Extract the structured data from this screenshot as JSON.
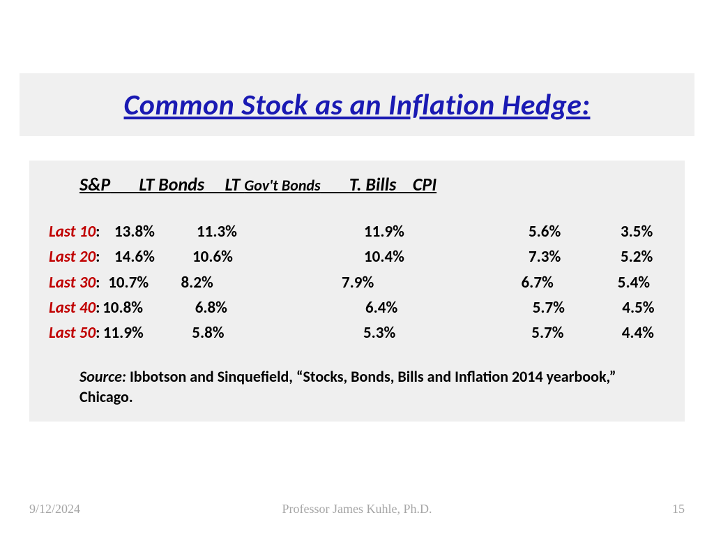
{
  "title": "Common Stock as an Inflation Hedge:",
  "colors": {
    "title_color": "#1a1ab3",
    "title_bg": "#f0f0f0",
    "content_bg": "#efefef",
    "label_color": "#c00000",
    "text_color": "#000000",
    "footer_color": "#a6a6a6",
    "page_bg": "#ffffff"
  },
  "typography": {
    "title_fontsize": 42,
    "header_fontsize": 26,
    "header_small_fontsize": 22,
    "row_fontsize": 23,
    "source_fontsize": 22,
    "footer_fontsize": 18
  },
  "headers": {
    "h1": "S&P",
    "h2": "LT Bonds",
    "h3a": "LT ",
    "h3b": "Gov't Bonds",
    "h4": "T. Bills",
    "h5": "CPI"
  },
  "rows": [
    {
      "label": "Last 10",
      "sp": "13.8%",
      "ltb": "11.3%",
      "ltg": "11.9%",
      "tb": "5.6%",
      "cpi": "3.5%",
      "off1": "14px",
      "off2": "22px",
      "off3": "80px",
      "off4": "60px",
      "off5": "36px"
    },
    {
      "label": "Last 20",
      "sp": "14.6%",
      "ltb": "10.6%",
      "ltg": "10.4%",
      "tb": "7.3%",
      "cpi": "5.2%",
      "off1": "14px",
      "off2": "16px",
      "off3": "86px",
      "off4": "60px",
      "off5": "36px"
    },
    {
      "label": "Last 30",
      "sp": "10.7%",
      "ltb": "8.2%",
      "ltg": "7.9%",
      "tb": "6.7%",
      "cpi": "5.4%",
      "off1": "0px",
      "off2": "2px",
      "off3": "60px",
      "off4": "70px",
      "off5": "36px"
    },
    {
      "label": "Last 40",
      "sp": "10.8%",
      "ltb": "6.8%",
      "ltg": "6.4%",
      "tb": "5.7%",
      "cpi": "4.5%",
      "off1": "0px",
      "off2": "40px",
      "off3": "90px",
      "off4": "70px",
      "off5": "36px"
    },
    {
      "label": "Last 50",
      "sp": "11.9%",
      "ltb": "5.8%",
      "ltg": "5.3%",
      "tb": "5.7%",
      "cpi": "4.4%",
      "off1": "0px",
      "off2": "34px",
      "off3": "90px",
      "off4": "70px",
      "off5": "36px"
    }
  ],
  "source_label": "Source:",
  "source_text": "  Ibbotson and Sinquefield, “Stocks, Bonds, Bills and Inflation 2014  yearbook,” Chicago.",
  "footer": {
    "date": "9/12/2024",
    "center": "Professor James Kuhle, Ph.D.",
    "page": "15"
  }
}
